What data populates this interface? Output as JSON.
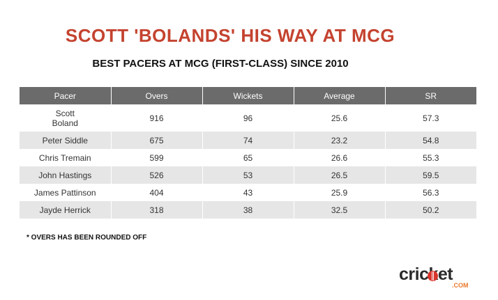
{
  "title": "SCOTT 'BOLANDS' HIS WAY AT MCG",
  "subtitle": "BEST PACERS AT MCG (FIRST-CLASS) SINCE 2010",
  "table": {
    "headers": [
      "Pacer",
      "Overs",
      "Wickets",
      "Average",
      "SR"
    ],
    "rows": [
      {
        "pacer_line1": "Scott",
        "pacer_line2": "Boland",
        "overs": "916",
        "wickets": "96",
        "average": "25.6",
        "sr": "57.3"
      },
      {
        "pacer": "Peter Siddle",
        "overs": "675",
        "wickets": "74",
        "average": "23.2",
        "sr": "54.8"
      },
      {
        "pacer": "Chris Tremain",
        "overs": "599",
        "wickets": "65",
        "average": "26.6",
        "sr": "55.3"
      },
      {
        "pacer": "John Hastings",
        "overs": "526",
        "wickets": "53",
        "average": "26.5",
        "sr": "59.5"
      },
      {
        "pacer": "James Pattinson",
        "overs": "404",
        "wickets": "43",
        "average": "25.9",
        "sr": "56.3"
      },
      {
        "pacer": "Jayde Herrick",
        "overs": "318",
        "wickets": "38",
        "average": "32.5",
        "sr": "50.2"
      }
    ]
  },
  "footnote": "* OVERS HAS BEEN ROUNDED OFF",
  "logo": {
    "word": "cricket",
    "suffix": ".COM"
  },
  "colors": {
    "title": "#c4432f",
    "header_bg": "#6b6b6b",
    "stripe": "#e6e6e6",
    "logo_accent": "#e8792b"
  }
}
